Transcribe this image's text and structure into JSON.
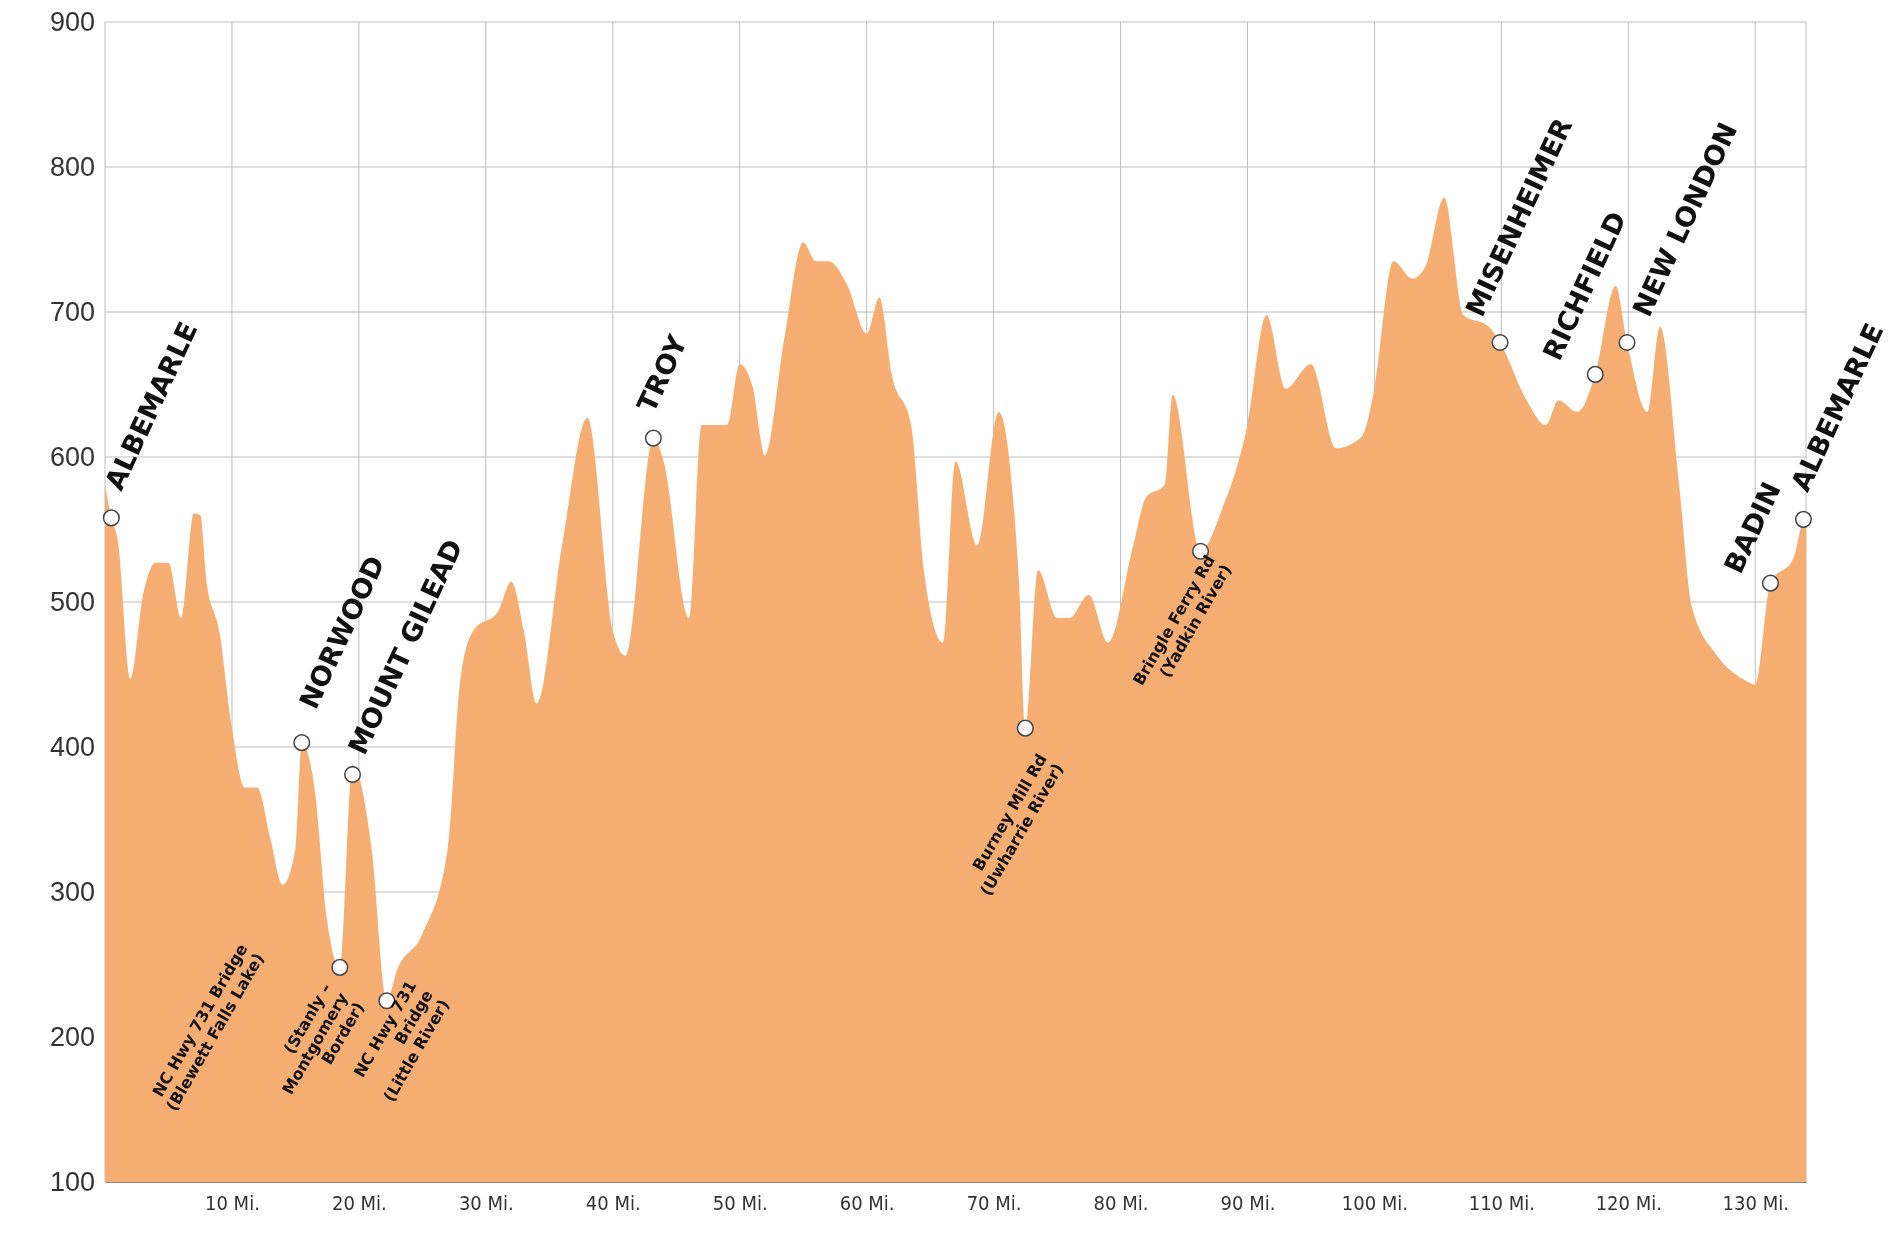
{
  "chart_data": {
    "type": "area",
    "xlim": [
      0,
      134
    ],
    "ylim": [
      100,
      900
    ],
    "xticks": [
      {
        "value": 10,
        "label": "10 Mi."
      },
      {
        "value": 20,
        "label": "20 Mi."
      },
      {
        "value": 30,
        "label": "30 Mi."
      },
      {
        "value": 40,
        "label": "40 Mi."
      },
      {
        "value": 50,
        "label": "50 Mi."
      },
      {
        "value": 60,
        "label": "60 Mi."
      },
      {
        "value": 70,
        "label": "70 Mi."
      },
      {
        "value": 80,
        "label": "80 Mi."
      },
      {
        "value": 90,
        "label": "90 Mi."
      },
      {
        "value": 100,
        "label": "100 Mi."
      },
      {
        "value": 110,
        "label": "110 Mi."
      },
      {
        "value": 120,
        "label": "120 Mi."
      },
      {
        "value": 130,
        "label": "130 Mi."
      }
    ],
    "yticks": [
      100,
      200,
      300,
      400,
      500,
      600,
      700,
      800,
      900
    ],
    "grid": true,
    "series": [
      {
        "color": "#f5ad72",
        "x": [
          0,
          0.5,
          1,
          2,
          3,
          4,
          5,
          6,
          7,
          7.5,
          8,
          9,
          10,
          11,
          12,
          13,
          14,
          15,
          15.5,
          16.5,
          17.5,
          18.5,
          19.5,
          21,
          22.2,
          23,
          25,
          27,
          28,
          29,
          31,
          32,
          33,
          34,
          36,
          38,
          40,
          41,
          43.2,
          44,
          46,
          47,
          49,
          50,
          51,
          52,
          53.5,
          55,
          56,
          57,
          58.5,
          60,
          61,
          62,
          63.5,
          64.5,
          66,
          67,
          68.7,
          70.4,
          72,
          72.5,
          73.5,
          75,
          76,
          77.5,
          79,
          81,
          82,
          83.5,
          84.1,
          86.3,
          88,
          90,
          91.5,
          93,
          95,
          97,
          99,
          100,
          101.5,
          103,
          104,
          105.5,
          107,
          109,
          109.9,
          112,
          113.5,
          114.5,
          116,
          117.4,
          119,
          119.9,
          121.5,
          122.5,
          124,
          125,
          127,
          129,
          130,
          131.2,
          133,
          133.8,
          134
        ],
        "values": [
          581,
          558,
          543,
          447,
          505,
          527,
          527,
          489,
          561,
          560,
          514,
          480,
          413,
          372,
          372,
          338,
          305,
          330,
          403,
          372,
          280,
          248,
          388,
          330,
          225,
          246,
          271,
          330,
          447,
          480,
          494,
          514,
          480,
          430,
          539,
          627,
          480,
          463,
          613,
          597,
          489,
          622,
          622,
          664,
          649,
          601,
          681,
          748,
          735,
          735,
          718,
          685,
          710,
          656,
          622,
          522,
          472,
          597,
          539,
          631,
          514,
          413,
          522,
          489,
          489,
          505,
          472,
          539,
          572,
          581,
          643,
          535,
          564,
          622,
          698,
          647,
          664,
          606,
          614,
          647,
          735,
          723,
          731,
          779,
          698,
          690,
          679,
          639,
          622,
          639,
          631,
          657,
          718,
          679,
          631,
          690,
          581,
          497,
          463,
          447,
          443,
          513,
          530,
          557,
          560
        ]
      },
      {
        "type": "scatter",
        "color": "#ffffff",
        "marker": "circle",
        "x": [
          0.5,
          15.5,
          19.5,
          18.5,
          22.2,
          43.2,
          72.5,
          86.3,
          109.9,
          117.4,
          119.9,
          131.2,
          133.8
        ],
        "values": [
          558,
          403,
          381,
          248,
          225,
          613,
          413,
          535,
          679,
          657,
          679,
          513,
          557
        ]
      }
    ],
    "annotations": [
      {
        "text": "ALBEMARLE",
        "x": 0.5,
        "y": 558
      },
      {
        "text": "NORWOOD",
        "x": 15.5,
        "y": 403
      },
      {
        "text": "MOUNT GILEAD",
        "x": 19.5,
        "y": 381
      },
      "NC Hwy 731 Bridge (Blewett Falls Lake)",
      {
        "text": "(Stanly – Montgomery Border)",
        "x": 18.5,
        "y": 248
      },
      {
        "text": "NC Hwy 731 Bridge (Little River)",
        "x": 22.2,
        "y": 225
      },
      {
        "text": "TROY",
        "x": 43.2,
        "y": 613
      },
      {
        "text": "Burney Mill Rd (Uwharrie River)",
        "x": 72.5,
        "y": 413
      },
      {
        "text": "Bringle Ferry Rd (Yadkin River)",
        "x": 86.3,
        "y": 535
      },
      {
        "text": "MISENHEIMER",
        "x": 109.9,
        "y": 679
      },
      {
        "text": "RICHFIELD",
        "x": 117.4,
        "y": 657
      },
      {
        "text": "NEW LONDON",
        "x": 119.9,
        "y": 679
      },
      {
        "text": "BADIN",
        "x": 131.2,
        "y": 513
      },
      {
        "text": "ALBEMARLE",
        "x": 133.8,
        "y": 557
      }
    ]
  }
}
